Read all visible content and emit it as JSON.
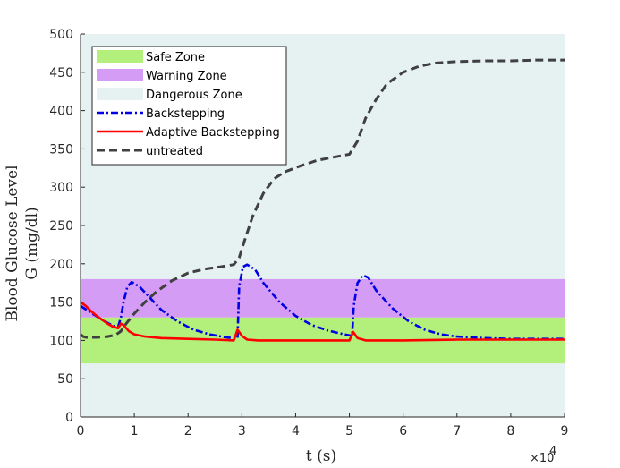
{
  "chart_data": {
    "type": "line",
    "title": "",
    "xlabel": "t (s)",
    "ylabel_line1": "Blood Glucose Level",
    "ylabel_line2": "G (mg/dl)",
    "x_multiplier": "×10",
    "x_multiplier_exp": "4",
    "xlim": [
      0,
      90000
    ],
    "ylim": [
      0,
      500
    ],
    "x_ticks": [
      0,
      10000,
      20000,
      30000,
      40000,
      50000,
      60000,
      70000,
      80000,
      90000
    ],
    "x_tick_labels": [
      "0",
      "1",
      "2",
      "3",
      "4",
      "5",
      "6",
      "7",
      "8",
      "9"
    ],
    "y_ticks": [
      0,
      50,
      100,
      150,
      200,
      250,
      300,
      350,
      400,
      450,
      500
    ],
    "y_tick_labels": [
      "0",
      "50",
      "100",
      "150",
      "200",
      "250",
      "300",
      "350",
      "400",
      "450",
      "500"
    ],
    "grid": false,
    "legend_position": "top-left",
    "zones": [
      {
        "name": "Safe Zone",
        "y_from": 70,
        "y_to": 130,
        "color": "#b2f07b"
      },
      {
        "name": "Warning Zone",
        "y_from": 130,
        "y_to": 180,
        "color": "#d59cf5"
      },
      {
        "name": "Dangerous Zone",
        "y_from": 0,
        "y_to": 500,
        "color": "#e6f1f2"
      }
    ],
    "series": [
      {
        "name": "Backstepping",
        "color": "#0000e6",
        "dash": "dashdot",
        "x": [
          0,
          2000,
          4000,
          6000,
          7000,
          7500,
          8000,
          8700,
          9500,
          11000,
          13000,
          15000,
          18000,
          21000,
          24000,
          27000,
          28500,
          29200,
          29500,
          30200,
          31000,
          32500,
          34000,
          37000,
          40000,
          43000,
          46000,
          49000,
          50500,
          50800,
          51500,
          52500,
          53500,
          55000,
          58000,
          61000,
          64000,
          67000,
          70000,
          75000,
          80000,
          85000,
          90000
        ],
        "y": [
          145,
          136,
          127,
          119,
          118,
          130,
          150,
          170,
          176,
          170,
          155,
          140,
          125,
          114,
          108,
          104,
          103,
          103,
          170,
          196,
          199,
          192,
          175,
          150,
          132,
          120,
          113,
          108,
          106,
          145,
          175,
          185,
          182,
          165,
          142,
          125,
          114,
          108,
          105,
          103,
          102,
          102,
          102
        ]
      },
      {
        "name": "Adaptive Backstepping",
        "color": "#ff0000",
        "dash": "solid",
        "x": [
          0,
          1000,
          2000,
          3000,
          4000,
          5000,
          6000,
          7000,
          7500,
          8000,
          9000,
          10000,
          12000,
          15000,
          20000,
          25000,
          28500,
          29200,
          30000,
          31000,
          33000,
          36000,
          40000,
          45000,
          50000,
          50700,
          51500,
          53000,
          56000,
          60000,
          70000,
          80000,
          90000
        ],
        "y": [
          150,
          145,
          138,
          132,
          127,
          122,
          118,
          116,
          122,
          120,
          112,
          108,
          105,
          103,
          102,
          101,
          100,
          114,
          106,
          101,
          100,
          100,
          100,
          100,
          100,
          111,
          103,
          100,
          100,
          100,
          101,
          101,
          101
        ]
      },
      {
        "name": "untreated",
        "color": "#404040",
        "dash": "dashed",
        "x": [
          0,
          500,
          1000,
          3000,
          5000,
          6500,
          7500,
          8500,
          10000,
          12000,
          14000,
          17000,
          20000,
          23000,
          26000,
          28500,
          29500,
          30500,
          32000,
          34000,
          36000,
          38000,
          41000,
          44000,
          47000,
          50000,
          51500,
          53000,
          55000,
          57000,
          60000,
          63000,
          66000,
          70000,
          75000,
          80000,
          85000,
          90000
        ],
        "y": [
          108,
          105,
          104,
          104,
          105,
          107,
          112,
          122,
          135,
          150,
          163,
          178,
          188,
          193,
          196,
          199,
          208,
          230,
          262,
          292,
          311,
          320,
          328,
          335,
          339,
          343,
          360,
          390,
          415,
          435,
          450,
          458,
          462,
          464,
          465,
          465,
          466,
          466
        ]
      }
    ]
  }
}
